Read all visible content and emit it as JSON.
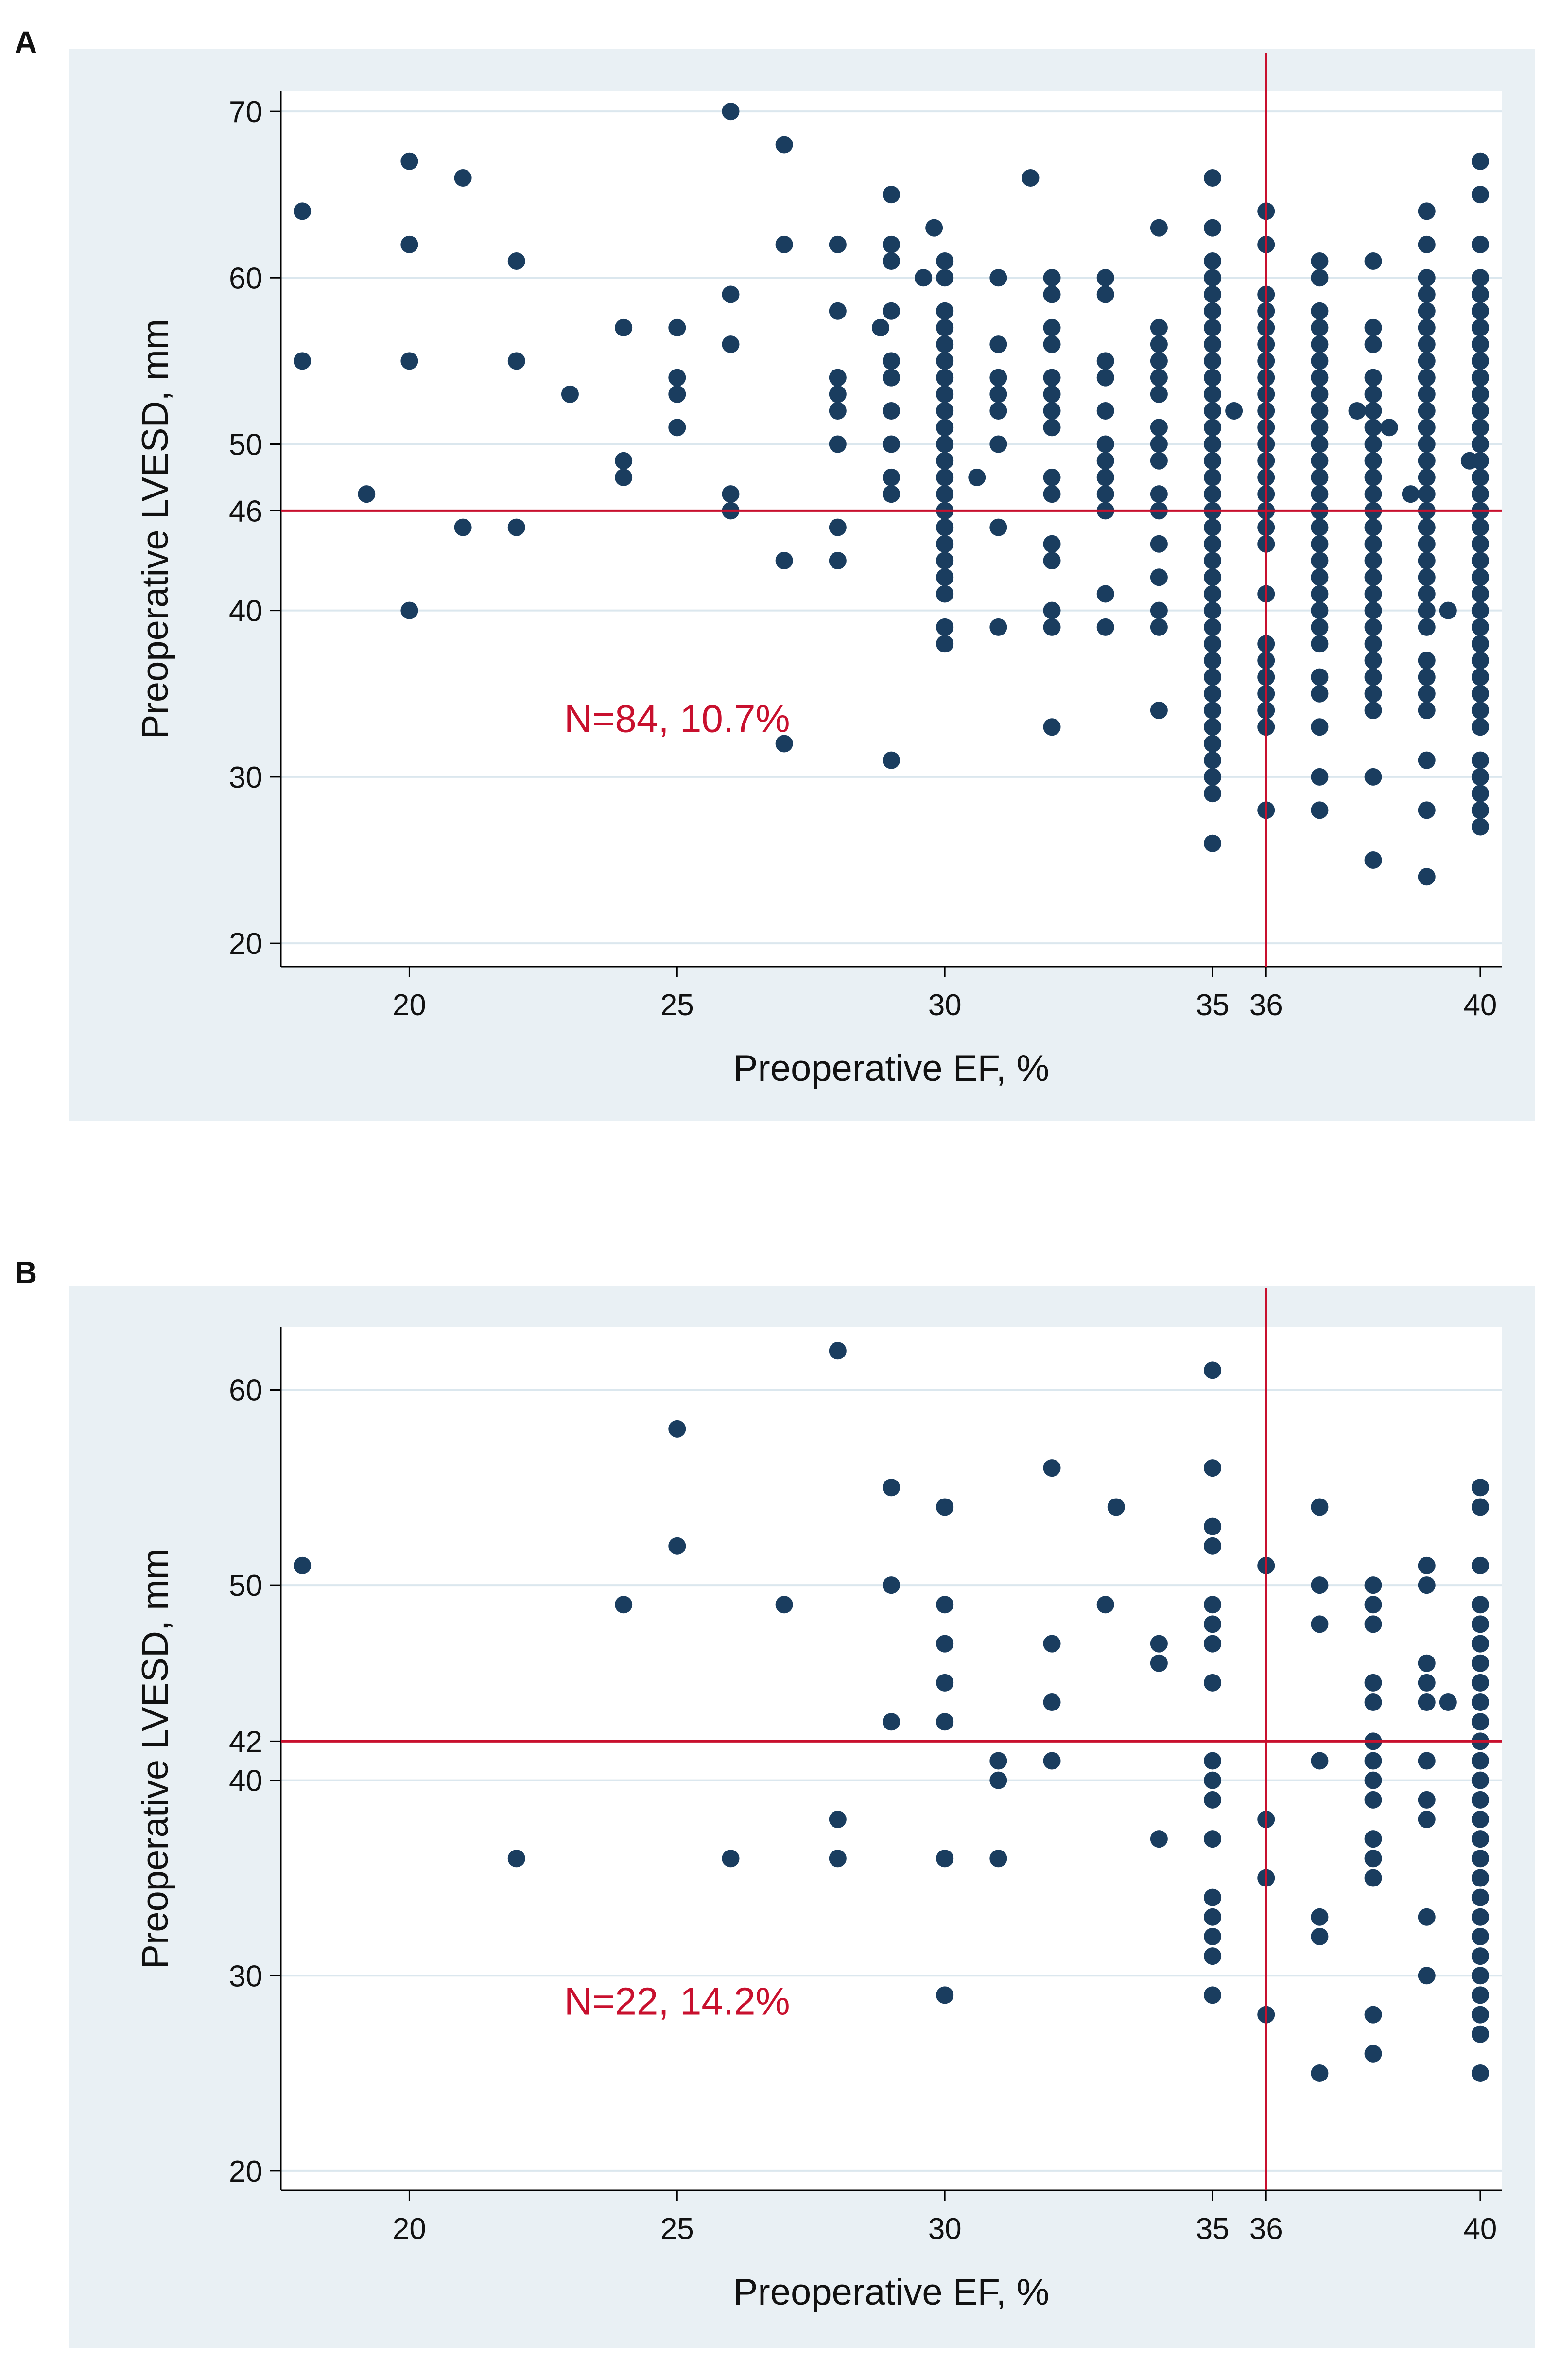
{
  "colors": {
    "panel_bg": "#e9f0f4",
    "plot_bg": "#ffffff",
    "grid": "#dbe7ee",
    "point": "#1a3d5f",
    "refline": "#c8102e",
    "axis": "#000000"
  },
  "chart_data": [
    {
      "panel": "A",
      "type": "scatter",
      "xlabel": "Preoperative EF, %",
      "ylabel": "Preoperative LVESD, mm",
      "xlim": [
        17.6,
        40.4
      ],
      "ylim": [
        18.6,
        71.2
      ],
      "xticks": [
        20,
        25,
        30,
        35,
        36,
        40
      ],
      "yticks": [
        20,
        30,
        40,
        46,
        50,
        60,
        70
      ],
      "gridlines_y": [
        20,
        30,
        40,
        50,
        60,
        70
      ],
      "reference_lines": {
        "x": 36,
        "y": 46
      },
      "annotation": {
        "text": "N=84, 10.7%",
        "x": 25,
        "y": 32.7
      },
      "columns": [
        {
          "x": 18,
          "y": [
            64,
            55
          ]
        },
        {
          "x": 19.2,
          "y": [
            47
          ]
        },
        {
          "x": 20,
          "y": [
            67,
            62,
            55,
            40
          ]
        },
        {
          "x": 21,
          "y": [
            66,
            45
          ]
        },
        {
          "x": 22,
          "y": [
            61,
            55,
            45
          ]
        },
        {
          "x": 23,
          "y": [
            53
          ]
        },
        {
          "x": 24,
          "y": [
            57,
            49,
            48
          ]
        },
        {
          "x": 25,
          "y": [
            57,
            54,
            53,
            51
          ]
        },
        {
          "x": 26,
          "y": [
            70,
            59,
            56,
            47,
            46
          ]
        },
        {
          "x": 27,
          "y": [
            68,
            62,
            43,
            32
          ]
        },
        {
          "x": 28,
          "y": [
            62,
            58,
            54,
            53,
            52,
            50,
            45,
            43
          ]
        },
        {
          "x": 28.8,
          "y": [
            57
          ]
        },
        {
          "x": 29,
          "y": [
            65,
            62,
            61,
            58,
            55,
            54,
            52,
            50,
            48,
            47,
            31
          ]
        },
        {
          "x": 29.6,
          "y": [
            60
          ]
        },
        {
          "x": 29.8,
          "y": [
            63
          ]
        },
        {
          "x": 30,
          "y": [
            61,
            60,
            58,
            57,
            56,
            55,
            54,
            53,
            52,
            51,
            50,
            49,
            48,
            47,
            46,
            45,
            44,
            43,
            42,
            41,
            39,
            38
          ]
        },
        {
          "x": 30.6,
          "y": [
            48
          ]
        },
        {
          "x": 31,
          "y": [
            60,
            56,
            54,
            53,
            52,
            50,
            45,
            39
          ]
        },
        {
          "x": 31.6,
          "y": [
            66
          ]
        },
        {
          "x": 32,
          "y": [
            60,
            59,
            57,
            56,
            54,
            53,
            52,
            51,
            48,
            47,
            44,
            43,
            40,
            39,
            33
          ]
        },
        {
          "x": 33,
          "y": [
            60,
            59,
            55,
            54,
            52,
            50,
            49,
            48,
            47,
            46,
            41,
            39
          ]
        },
        {
          "x": 34,
          "y": [
            63,
            57,
            56,
            55,
            54,
            53,
            51,
            50,
            49,
            47,
            46,
            44,
            42,
            40,
            39,
            34
          ]
        },
        {
          "x": 35,
          "y": [
            66,
            63,
            61,
            60,
            59,
            58,
            57,
            56,
            55,
            54,
            53,
            52,
            51,
            50,
            49,
            48,
            47,
            46,
            45,
            44,
            43,
            42,
            41,
            40,
            39,
            38,
            37,
            36,
            35,
            34,
            33,
            32,
            31,
            30,
            29,
            26
          ]
        },
        {
          "x": 35.4,
          "y": [
            52
          ]
        },
        {
          "x": 36,
          "y": [
            64,
            62,
            59,
            58,
            57,
            56,
            55,
            54,
            53,
            52,
            51,
            50,
            49,
            48,
            47,
            46,
            45,
            44,
            41,
            38,
            37,
            36,
            35,
            34,
            33,
            28
          ]
        },
        {
          "x": 37,
          "y": [
            61,
            60,
            58,
            57,
            56,
            55,
            54,
            53,
            52,
            51,
            50,
            49,
            48,
            47,
            46,
            45,
            44,
            43,
            42,
            41,
            40,
            39,
            38,
            36,
            35,
            33,
            30,
            28
          ]
        },
        {
          "x": 37.7,
          "y": [
            52
          ]
        },
        {
          "x": 38,
          "y": [
            61,
            57,
            56,
            54,
            53,
            52,
            51,
            50,
            49,
            48,
            47,
            46,
            45,
            44,
            43,
            42,
            41,
            40,
            39,
            38,
            37,
            36,
            35,
            34,
            30,
            25
          ]
        },
        {
          "x": 38.3,
          "y": [
            51
          ]
        },
        {
          "x": 38.7,
          "y": [
            47
          ]
        },
        {
          "x": 39,
          "y": [
            64,
            62,
            60,
            59,
            58,
            57,
            56,
            55,
            54,
            53,
            52,
            51,
            50,
            49,
            48,
            47,
            46,
            45,
            44,
            43,
            42,
            41,
            40,
            39,
            37,
            36,
            35,
            34,
            31,
            28,
            24
          ]
        },
        {
          "x": 39.4,
          "y": [
            40
          ]
        },
        {
          "x": 39.8,
          "y": [
            49
          ]
        },
        {
          "x": 40,
          "y": [
            67,
            65,
            62,
            60,
            59,
            58,
            57,
            56,
            55,
            54,
            53,
            52,
            51,
            50,
            49,
            48,
            47,
            46,
            45,
            44,
            43,
            42,
            41,
            40,
            39,
            38,
            37,
            36,
            35,
            34,
            33,
            31,
            30,
            29,
            28,
            27
          ]
        }
      ]
    },
    {
      "panel": "B",
      "type": "scatter",
      "xlabel": "Preoperative EF, %",
      "ylabel": "Preoperative LVESD, mm",
      "xlim": [
        17.6,
        40.4
      ],
      "ylim": [
        19,
        63.2
      ],
      "xticks": [
        20,
        25,
        30,
        35,
        36,
        40
      ],
      "yticks": [
        20,
        30,
        40,
        42,
        50,
        60
      ],
      "gridlines_y": [
        20,
        30,
        40,
        50,
        60
      ],
      "reference_lines": {
        "x": 36,
        "y": 42
      },
      "annotation": {
        "text": "N=22, 14.2%",
        "x": 25,
        "y": 28
      },
      "columns": [
        {
          "x": 18,
          "y": [
            51
          ]
        },
        {
          "x": 22,
          "y": [
            36
          ]
        },
        {
          "x": 24,
          "y": [
            49
          ]
        },
        {
          "x": 25,
          "y": [
            58,
            52
          ]
        },
        {
          "x": 26,
          "y": [
            36
          ]
        },
        {
          "x": 27,
          "y": [
            49
          ]
        },
        {
          "x": 28,
          "y": [
            62,
            38,
            36
          ]
        },
        {
          "x": 29,
          "y": [
            55,
            50,
            43
          ]
        },
        {
          "x": 30,
          "y": [
            54,
            49,
            47,
            45,
            43,
            36,
            29
          ]
        },
        {
          "x": 31,
          "y": [
            41,
            40,
            36
          ]
        },
        {
          "x": 32,
          "y": [
            56,
            47,
            44,
            41
          ]
        },
        {
          "x": 33,
          "y": [
            49
          ]
        },
        {
          "x": 33.2,
          "y": [
            54
          ]
        },
        {
          "x": 34,
          "y": [
            47,
            46,
            37
          ]
        },
        {
          "x": 35,
          "y": [
            61,
            56,
            53,
            52,
            49,
            48,
            47,
            45,
            41,
            40,
            39,
            37,
            34,
            33,
            32,
            31,
            29
          ]
        },
        {
          "x": 36,
          "y": [
            51,
            38,
            35,
            28
          ]
        },
        {
          "x": 37,
          "y": [
            54,
            50,
            48,
            41,
            33,
            32,
            25
          ]
        },
        {
          "x": 38,
          "y": [
            50,
            49,
            48,
            45,
            44,
            42,
            41,
            40,
            39,
            37,
            36,
            35,
            28,
            26
          ]
        },
        {
          "x": 39,
          "y": [
            51,
            50,
            46,
            45,
            44,
            41,
            39,
            38,
            33,
            30
          ]
        },
        {
          "x": 39.4,
          "y": [
            44
          ]
        },
        {
          "x": 40,
          "y": [
            55,
            54,
            51,
            49,
            48,
            47,
            46,
            45,
            44,
            43,
            42,
            41,
            40,
            39,
            38,
            37,
            36,
            35,
            34,
            33,
            32,
            31,
            30,
            29,
            28,
            27,
            25
          ]
        }
      ]
    }
  ]
}
